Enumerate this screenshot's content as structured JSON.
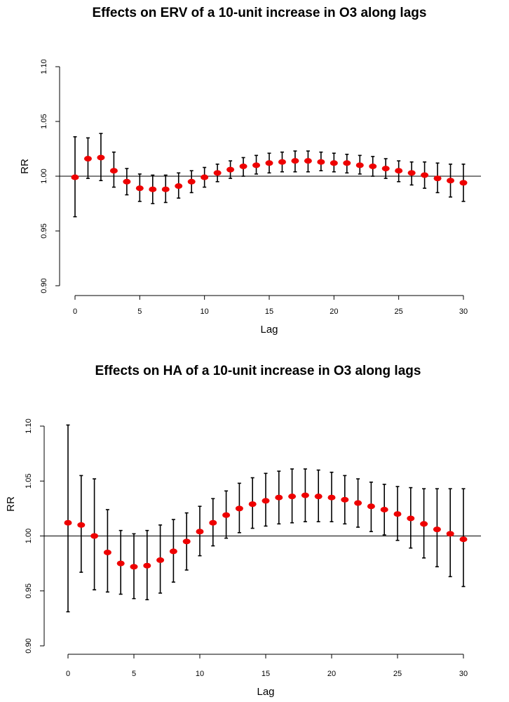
{
  "colors": {
    "point": "#ee0000",
    "bar": "#000000",
    "refline": "#000000"
  },
  "chart_data": [
    {
      "type": "scatter",
      "title": "Effects on ERV of a 10-unit increase in O3 along lags",
      "xlabel": "Lag",
      "ylabel": "RR",
      "xlim": [
        0,
        30
      ],
      "ylim": [
        0.9,
        1.1
      ],
      "x_ticks": [
        "0",
        "5",
        "10",
        "15",
        "20",
        "25",
        "30"
      ],
      "y_ticks": [
        "0.90",
        "0.95",
        "1.00",
        "1.05",
        "1.10"
      ],
      "reference_line": 1.0,
      "grid": false,
      "x": [
        0,
        1,
        2,
        3,
        4,
        5,
        6,
        7,
        8,
        9,
        10,
        11,
        12,
        13,
        14,
        15,
        16,
        17,
        18,
        19,
        20,
        21,
        22,
        23,
        24,
        25,
        26,
        27,
        28,
        29,
        30
      ],
      "estimate": [
        0.999,
        1.016,
        1.017,
        1.005,
        0.995,
        0.989,
        0.988,
        0.988,
        0.991,
        0.995,
        0.999,
        1.003,
        1.006,
        1.009,
        1.01,
        1.012,
        1.013,
        1.014,
        1.014,
        1.013,
        1.012,
        1.012,
        1.01,
        1.009,
        1.007,
        1.005,
        1.003,
        1.001,
        0.998,
        0.996,
        0.994
      ],
      "lower": [
        0.963,
        0.998,
        0.996,
        0.99,
        0.983,
        0.977,
        0.975,
        0.976,
        0.98,
        0.985,
        0.99,
        0.995,
        0.998,
        1.0,
        1.002,
        1.003,
        1.004,
        1.004,
        1.004,
        1.005,
        1.004,
        1.003,
        1.002,
        1.0,
        0.998,
        0.995,
        0.992,
        0.989,
        0.985,
        0.981,
        0.977
      ],
      "upper": [
        1.036,
        1.035,
        1.039,
        1.022,
        1.007,
        1.002,
        1.001,
        1.001,
        1.003,
        1.005,
        1.008,
        1.011,
        1.014,
        1.017,
        1.019,
        1.021,
        1.022,
        1.023,
        1.023,
        1.022,
        1.021,
        1.02,
        1.019,
        1.018,
        1.016,
        1.014,
        1.013,
        1.013,
        1.012,
        1.011,
        1.011
      ]
    },
    {
      "type": "scatter",
      "title": "Effects on HA of a 10-unit increase in O3 along lags",
      "xlabel": "Lag",
      "ylabel": "RR",
      "xlim": [
        0,
        30
      ],
      "ylim": [
        0.9,
        1.1
      ],
      "x_ticks": [
        "0",
        "5",
        "10",
        "15",
        "20",
        "25",
        "30"
      ],
      "y_ticks": [
        "0.90",
        "0.95",
        "1.00",
        "1.05",
        "1.10"
      ],
      "reference_line": 1.0,
      "grid": false,
      "x": [
        0,
        1,
        2,
        3,
        4,
        5,
        6,
        7,
        8,
        9,
        10,
        11,
        12,
        13,
        14,
        15,
        16,
        17,
        18,
        19,
        20,
        21,
        22,
        23,
        24,
        25,
        26,
        27,
        28,
        29,
        30
      ],
      "estimate": [
        1.012,
        1.01,
        1.0,
        0.985,
        0.975,
        0.972,
        0.973,
        0.978,
        0.986,
        0.995,
        1.004,
        1.012,
        1.019,
        1.025,
        1.029,
        1.032,
        1.035,
        1.036,
        1.037,
        1.036,
        1.035,
        1.033,
        1.03,
        1.027,
        1.024,
        1.02,
        1.016,
        1.011,
        1.006,
        1.002,
        0.997
      ],
      "lower": [
        0.931,
        0.967,
        0.951,
        0.949,
        0.947,
        0.943,
        0.942,
        0.948,
        0.958,
        0.969,
        0.982,
        0.991,
        0.998,
        1.003,
        1.007,
        1.009,
        1.011,
        1.012,
        1.013,
        1.013,
        1.013,
        1.011,
        1.008,
        1.004,
        1.001,
        0.996,
        0.989,
        0.98,
        0.972,
        0.963,
        0.954
      ],
      "upper": [
        1.101,
        1.055,
        1.052,
        1.024,
        1.005,
        1.002,
        1.005,
        1.01,
        1.015,
        1.021,
        1.027,
        1.034,
        1.041,
        1.048,
        1.053,
        1.057,
        1.059,
        1.061,
        1.061,
        1.06,
        1.058,
        1.055,
        1.052,
        1.049,
        1.047,
        1.045,
        1.044,
        1.043,
        1.043,
        1.043,
        1.043
      ]
    }
  ]
}
